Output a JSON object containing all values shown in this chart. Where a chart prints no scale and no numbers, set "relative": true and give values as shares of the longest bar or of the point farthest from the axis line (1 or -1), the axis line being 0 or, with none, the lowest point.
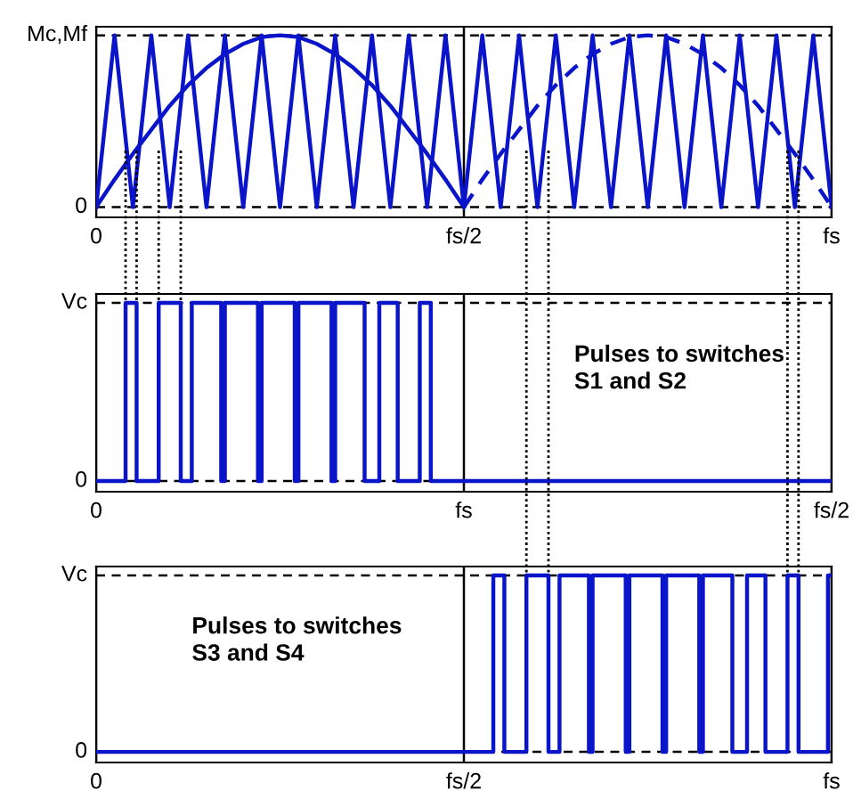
{
  "chart_data": [
    {
      "type": "line",
      "relative": true,
      "grid": "x",
      "categories": [
        "0",
        null,
        null,
        null,
        null,
        null,
        null,
        null,
        null,
        null,
        null,
        null,
        null,
        null,
        null,
        null,
        null,
        null,
        null,
        null,
        "fs/2",
        null,
        null,
        null,
        null,
        null,
        null,
        null,
        null,
        null,
        null,
        null,
        null,
        null,
        null,
        null,
        null,
        null,
        null,
        null,
        "fs"
      ],
      "annotations": [
        "Mc,Mf",
        "0"
      ],
      "series": [
        {
          "color": "#0a14c8",
          "line_style": "solid",
          "values": [
            0,
            1,
            0,
            1,
            0,
            1,
            0,
            1,
            0,
            1,
            0,
            1,
            0,
            1,
            0,
            1,
            0,
            1,
            0,
            1,
            0,
            1,
            0,
            1,
            0,
            1,
            0,
            1,
            0,
            1,
            0,
            1,
            0,
            1,
            0,
            1,
            0,
            1,
            0,
            1,
            0
          ]
        },
        {
          "color": "#0a14c8",
          "line_style": "solid",
          "values": [
            0,
            0.16,
            0.31,
            0.45,
            0.59,
            0.71,
            0.81,
            0.89,
            0.95,
            0.99,
            1,
            0.99,
            0.95,
            0.89,
            0.81,
            0.71,
            0.59,
            0.45,
            0.31,
            0.16,
            0,
            null,
            null,
            null,
            null,
            null,
            null,
            null,
            null,
            null,
            null,
            null,
            null,
            null,
            null,
            null,
            null,
            null,
            null,
            null,
            null
          ]
        },
        {
          "color": "#0a14c8",
          "line_style": "dashed",
          "values": [
            null,
            null,
            null,
            null,
            null,
            null,
            null,
            null,
            null,
            null,
            null,
            null,
            null,
            null,
            null,
            null,
            null,
            null,
            null,
            null,
            0,
            0.16,
            0.31,
            0.45,
            0.59,
            0.71,
            0.81,
            0.89,
            0.95,
            0.99,
            1,
            0.99,
            0.95,
            0.89,
            0.81,
            0.71,
            0.59,
            0.45,
            0.31,
            0.16,
            0
          ]
        }
      ],
      "ref_lines": [
        {
          "axis": "y",
          "value": 1,
          "line_style": "dashed",
          "color": "#000000"
        },
        {
          "axis": "y",
          "value": 0,
          "line_style": "dashed",
          "color": "#000000"
        }
      ]
    },
    {
      "type": "step",
      "relative": true,
      "grid": "x",
      "categories": [
        "0",
        null,
        null,
        null,
        null,
        null,
        null,
        null,
        null,
        null,
        null,
        null,
        null,
        null,
        null,
        null,
        null,
        null,
        null,
        null,
        null,
        null,
        null,
        null,
        null,
        null,
        null,
        null,
        null,
        null,
        null,
        null,
        null,
        null,
        null,
        null,
        null,
        null,
        null,
        null,
        null,
        null,
        null,
        null,
        null,
        null,
        null,
        null,
        null,
        null,
        null,
        null,
        null,
        null,
        null,
        null,
        null,
        null,
        null,
        null,
        null,
        null,
        null,
        null,
        null,
        null,
        null,
        null,
        null,
        null,
        null,
        null,
        null,
        null,
        null,
        null,
        null,
        null,
        null,
        null,
        null,
        null,
        null,
        null,
        null,
        null,
        null,
        null,
        null,
        null,
        null,
        null,
        null,
        null,
        null,
        null,
        null,
        null,
        null,
        null,
        "fs",
        null,
        null,
        null,
        null,
        null,
        null,
        null,
        null,
        null,
        null,
        null,
        null,
        null,
        null,
        null,
        null,
        null,
        null,
        null,
        null,
        null,
        null,
        null,
        null,
        null,
        null,
        null,
        null,
        null,
        null,
        null,
        null,
        null,
        null,
        null,
        null,
        null,
        null,
        null,
        null,
        null,
        null,
        null,
        null,
        null,
        null,
        null,
        null,
        null,
        null,
        null,
        null,
        null,
        null,
        null,
        null,
        null,
        null,
        null,
        null,
        null,
        null,
        null,
        null,
        null,
        null,
        null,
        null,
        null,
        null,
        null,
        null,
        null,
        null,
        null,
        null,
        null,
        null,
        null,
        null,
        null,
        null,
        null,
        null,
        null,
        null,
        null,
        null,
        null,
        null,
        null,
        null,
        null,
        null,
        null,
        null,
        null,
        null,
        null,
        "fs/2"
      ],
      "annotations": [
        "Vc",
        "0",
        "Pulses to switches\nS1 and S2"
      ],
      "series": [
        {
          "color": "#0a14c8",
          "values": [
            0,
            0,
            0,
            0,
            0,
            0,
            0,
            0,
            1,
            1,
            1,
            0,
            0,
            0,
            0,
            0,
            0,
            1,
            1,
            1,
            1,
            1,
            1,
            0,
            0,
            0,
            1,
            1,
            1,
            1,
            1,
            1,
            1,
            1,
            0,
            1,
            1,
            1,
            1,
            1,
            1,
            1,
            1,
            1,
            0,
            1,
            1,
            1,
            1,
            1,
            1,
            1,
            1,
            1,
            0,
            1,
            1,
            1,
            1,
            1,
            1,
            1,
            1,
            1,
            0,
            1,
            1,
            1,
            1,
            1,
            1,
            1,
            1,
            0,
            0,
            0,
            0,
            1,
            1,
            1,
            1,
            1,
            0,
            0,
            0,
            0,
            0,
            0,
            1,
            1,
            1,
            0,
            0,
            0,
            0,
            0,
            0,
            0,
            0,
            0,
            0,
            0,
            0,
            0,
            0,
            0,
            0,
            0,
            0,
            0,
            0,
            0,
            0,
            0,
            0,
            0,
            0,
            0,
            0,
            0,
            0,
            0,
            0,
            0,
            0,
            0,
            0,
            0,
            0,
            0,
            0,
            0,
            0,
            0,
            0,
            0,
            0,
            0,
            0,
            0,
            0,
            0,
            0,
            0,
            0,
            0,
            0,
            0,
            0,
            0,
            0,
            0,
            0,
            0,
            0,
            0,
            0,
            0,
            0,
            0,
            0,
            0,
            0,
            0,
            0,
            0,
            0,
            0,
            0,
            0,
            0,
            0,
            0,
            0,
            0,
            0,
            0,
            0,
            0,
            0,
            0,
            0,
            0,
            0,
            0,
            0,
            0,
            0,
            0,
            0,
            0,
            0,
            0,
            0,
            0,
            0,
            0,
            0,
            0,
            0,
            0
          ]
        }
      ],
      "ref_lines": [
        {
          "axis": "y",
          "value": 1,
          "line_style": "dashed",
          "color": "#000000"
        },
        {
          "axis": "y",
          "value": 0,
          "line_style": "dashed",
          "color": "#000000"
        }
      ]
    },
    {
      "type": "step",
      "relative": true,
      "grid": "x",
      "categories": [
        "0",
        null,
        null,
        null,
        null,
        null,
        null,
        null,
        null,
        null,
        null,
        null,
        null,
        null,
        null,
        null,
        null,
        null,
        null,
        null,
        null,
        null,
        null,
        null,
        null,
        null,
        null,
        null,
        null,
        null,
        null,
        null,
        null,
        null,
        null,
        null,
        null,
        null,
        null,
        null,
        null,
        null,
        null,
        null,
        null,
        null,
        null,
        null,
        null,
        null,
        null,
        null,
        null,
        null,
        null,
        null,
        null,
        null,
        null,
        null,
        null,
        null,
        null,
        null,
        null,
        null,
        null,
        null,
        null,
        null,
        null,
        null,
        null,
        null,
        null,
        null,
        null,
        null,
        null,
        null,
        null,
        null,
        null,
        null,
        null,
        null,
        null,
        null,
        null,
        null,
        null,
        null,
        null,
        null,
        null,
        null,
        null,
        null,
        null,
        null,
        "fs/2",
        null,
        null,
        null,
        null,
        null,
        null,
        null,
        null,
        null,
        null,
        null,
        null,
        null,
        null,
        null,
        null,
        null,
        null,
        null,
        null,
        null,
        null,
        null,
        null,
        null,
        null,
        null,
        null,
        null,
        null,
        null,
        null,
        null,
        null,
        null,
        null,
        null,
        null,
        null,
        null,
        null,
        null,
        null,
        null,
        null,
        null,
        null,
        null,
        null,
        null,
        null,
        null,
        null,
        null,
        null,
        null,
        null,
        null,
        null,
        null,
        null,
        null,
        null,
        null,
        null,
        null,
        null,
        null,
        null,
        null,
        null,
        null,
        null,
        null,
        null,
        null,
        null,
        null,
        null,
        null,
        null,
        null,
        null,
        null,
        null,
        null,
        null,
        null,
        null,
        null,
        null,
        null,
        null,
        null,
        null,
        null,
        null,
        null,
        null,
        "fs"
      ],
      "annotations": [
        "Vc",
        "0",
        "Pulses to switches\nS3 and S4"
      ],
      "series": [
        {
          "color": "#0a14c8",
          "values": [
            0,
            0,
            0,
            0,
            0,
            0,
            0,
            0,
            0,
            0,
            0,
            0,
            0,
            0,
            0,
            0,
            0,
            0,
            0,
            0,
            0,
            0,
            0,
            0,
            0,
            0,
            0,
            0,
            0,
            0,
            0,
            0,
            0,
            0,
            0,
            0,
            0,
            0,
            0,
            0,
            0,
            0,
            0,
            0,
            0,
            0,
            0,
            0,
            0,
            0,
            0,
            0,
            0,
            0,
            0,
            0,
            0,
            0,
            0,
            0,
            0,
            0,
            0,
            0,
            0,
            0,
            0,
            0,
            0,
            0,
            0,
            0,
            0,
            0,
            0,
            0,
            0,
            0,
            0,
            0,
            0,
            0,
            0,
            0,
            0,
            0,
            0,
            0,
            0,
            0,
            0,
            0,
            0,
            0,
            0,
            0,
            0,
            0,
            0,
            0,
            0,
            0,
            0,
            0,
            0,
            0,
            0,
            0,
            1,
            1,
            1,
            0,
            0,
            0,
            0,
            0,
            0,
            1,
            1,
            1,
            1,
            1,
            1,
            0,
            0,
            0,
            1,
            1,
            1,
            1,
            1,
            1,
            1,
            1,
            0,
            1,
            1,
            1,
            1,
            1,
            1,
            1,
            1,
            1,
            0,
            1,
            1,
            1,
            1,
            1,
            1,
            1,
            1,
            1,
            0,
            1,
            1,
            1,
            1,
            1,
            1,
            1,
            1,
            1,
            0,
            1,
            1,
            1,
            1,
            1,
            1,
            1,
            1,
            0,
            0,
            0,
            0,
            1,
            1,
            1,
            1,
            1,
            0,
            0,
            0,
            0,
            0,
            0,
            1,
            1,
            1,
            0,
            0,
            0,
            0,
            0,
            0,
            0,
            0,
            1,
            1
          ]
        }
      ],
      "ref_lines": [
        {
          "axis": "y",
          "value": 1,
          "line_style": "dashed",
          "color": "#000000"
        },
        {
          "axis": "y",
          "value": 0,
          "line_style": "dashed",
          "color": "#000000"
        }
      ]
    }
  ]
}
